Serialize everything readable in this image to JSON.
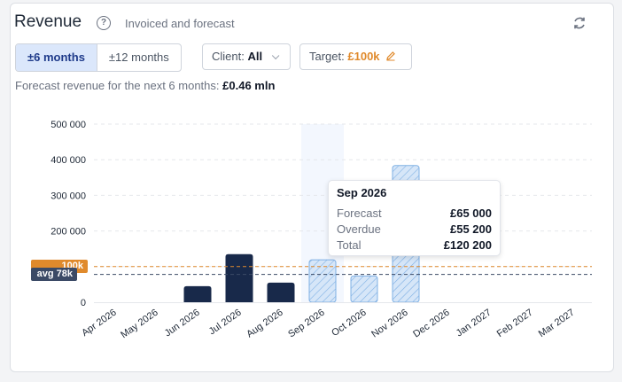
{
  "header": {
    "title": "Revenue",
    "subtitle": "Invoiced and forecast"
  },
  "controls": {
    "range_options": [
      "±6 months",
      "±12 months"
    ],
    "range_selected": "±6 months",
    "client_label": "Client:",
    "client_value": "All",
    "target_label": "Target:",
    "target_value": "£100k"
  },
  "forecast": {
    "label": "Forecast revenue for the next 6 months:",
    "value": "£0.46 mln"
  },
  "badges": {
    "target": "100k",
    "avg": "avg 78k"
  },
  "colors": {
    "invoiced": "#18294a",
    "forecast_fill": "#d6e6f8",
    "forecast_stroke": "#7fb0e4",
    "target": "#e08a2c",
    "avg": "#3b4a66",
    "highlight": "#f3f7fe"
  },
  "chart_data": {
    "type": "bar",
    "categories": [
      "Apr 2026",
      "May 2026",
      "Jun 2026",
      "Jul 2026",
      "Aug 2026",
      "Sep 2026",
      "Oct 2026",
      "Nov 2026",
      "Dec 2026",
      "Jan 2027",
      "Feb 2027",
      "Mar 2027"
    ],
    "series": [
      {
        "kind": "invoiced",
        "values": [
          0,
          0,
          45000,
          135000,
          55000,
          0,
          0,
          0,
          0,
          0,
          0,
          0
        ]
      },
      {
        "kind": "forecast",
        "values": [
          0,
          0,
          0,
          0,
          0,
          120200,
          75000,
          385000,
          0,
          0,
          0,
          0
        ]
      }
    ],
    "yticks": [
      0,
      100000,
      200000,
      300000,
      400000,
      500000
    ],
    "ytick_labels": [
      "0",
      "",
      "200 000",
      "300 000",
      "400 000",
      "500 000"
    ],
    "ylim": [
      0,
      500000
    ],
    "target": 100000,
    "average": 78000,
    "highlighted": "Sep 2026",
    "grid": true
  },
  "tooltip": {
    "title": "Sep 2026",
    "rows": [
      {
        "label": "Forecast",
        "value": "£65 000"
      },
      {
        "label": "Overdue",
        "value": "£55 200"
      },
      {
        "label": "Total",
        "value": "£120 200"
      }
    ]
  }
}
